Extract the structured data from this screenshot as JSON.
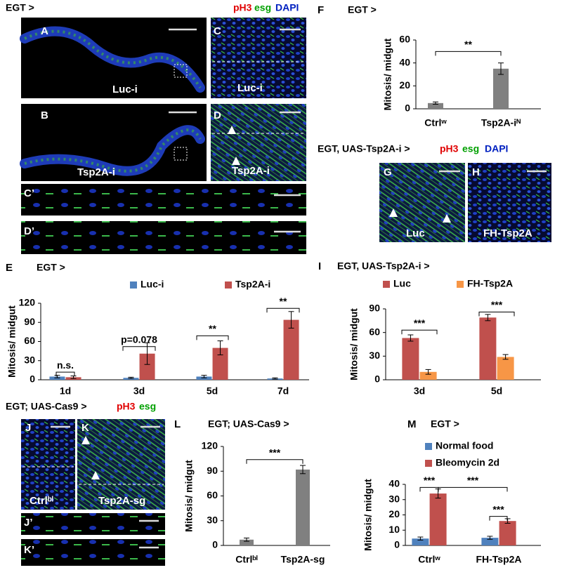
{
  "figure": {
    "top_header": "EGT >",
    "stain_1": [
      "pH3",
      "esg",
      "DAPI"
    ],
    "gh_header": "EGT, UAS-Tsp2A-i >",
    "stain_2": [
      "pH3",
      "esg",
      "DAPI"
    ],
    "jk_header": "EGT; UAS-Cas9 >",
    "stain_3": [
      "pH3",
      "esg"
    ],
    "images": [
      {
        "letter": "A",
        "label": "Luc-i"
      },
      {
        "letter": "B",
        "label": "Tsp2A-i"
      },
      {
        "letter": "C",
        "label": "Luc-i"
      },
      {
        "letter": "D",
        "label": "Tsp2A-i"
      },
      {
        "letter": "C’"
      },
      {
        "letter": "D’"
      },
      {
        "letter": "G",
        "label": "Luc"
      },
      {
        "letter": "H",
        "label": "FH-Tsp2A"
      },
      {
        "letter": "J",
        "label": "Ctrlᵇˡ"
      },
      {
        "letter": "K",
        "label": "Tsp2A-sg"
      },
      {
        "letter": "J’"
      },
      {
        "letter": "K’"
      }
    ]
  },
  "chart_data": [
    {
      "type": "bar",
      "letter": "F",
      "title": "EGT >",
      "ylabel": "Mitosis/ midgut",
      "categories": [
        "Ctrlʷ",
        "Tsp2A-iᴺ"
      ],
      "series": [
        {
          "color": "#808080",
          "values": [
            5,
            35
          ],
          "errors": [
            1,
            5
          ]
        }
      ],
      "ylim": [
        0,
        60
      ],
      "yticks": [
        0,
        20,
        40,
        60
      ],
      "annotations": [
        "**"
      ]
    },
    {
      "type": "bar",
      "letter": "E",
      "title": "EGT >",
      "ylabel": "Mitosis/ midgut",
      "categories": [
        "1d",
        "3d",
        "5d",
        "7d"
      ],
      "series": [
        {
          "name": "Luc-i",
          "color": "#4f81bd",
          "values": [
            5,
            3,
            5,
            2
          ],
          "errors": [
            2,
            1,
            2,
            1
          ]
        },
        {
          "name": "Tsp2A-i",
          "color": "#c0504d",
          "values": [
            4,
            41,
            50,
            94
          ],
          "errors": [
            2,
            17,
            11,
            13
          ]
        }
      ],
      "ylim": [
        0,
        120
      ],
      "yticks": [
        0,
        30,
        60,
        90,
        120
      ],
      "annotations": [
        "n.s.",
        "p=0.078",
        "**",
        "**"
      ]
    },
    {
      "type": "bar",
      "letter": "I",
      "title": "EGT, UAS-Tsp2A-i >",
      "ylabel": "Mitosis/ midgut",
      "categories": [
        "3d",
        "5d"
      ],
      "series": [
        {
          "name": "Luc",
          "color": "#c0504d",
          "values": [
            53,
            79
          ],
          "errors": [
            4,
            4
          ]
        },
        {
          "name": "FH-Tsp2A",
          "color": "#f79646",
          "values": [
            10,
            29
          ],
          "errors": [
            3,
            3
          ]
        }
      ],
      "ylim": [
        0,
        90
      ],
      "yticks": [
        0,
        30,
        60,
        90
      ],
      "annotations": [
        "***",
        "***"
      ]
    },
    {
      "type": "bar",
      "letter": "L",
      "title": "EGT; UAS-Cas9 >",
      "ylabel": "Mitosis/ midgut",
      "categories": [
        "Ctrlᵇˡ",
        "Tsp2A-sg"
      ],
      "series": [
        {
          "color": "#808080",
          "values": [
            7,
            92
          ],
          "errors": [
            2,
            5
          ]
        }
      ],
      "ylim": [
        0,
        120
      ],
      "yticks": [
        0,
        30,
        60,
        90,
        120
      ],
      "annotations": [
        "***"
      ]
    },
    {
      "type": "bar",
      "letter": "M",
      "title": "EGT >",
      "ylabel": "Mitosis/ midgut",
      "categories": [
        "Ctrlʷ",
        "FH-Tsp2A"
      ],
      "series": [
        {
          "name": "Normal food",
          "color": "#4f81bd",
          "values": [
            4.5,
            5
          ],
          "errors": [
            1,
            1
          ]
        },
        {
          "name": "Bleomycin 2d",
          "color": "#c0504d",
          "values": [
            34,
            16
          ],
          "errors": [
            3,
            1.5
          ]
        }
      ],
      "ylim": [
        0,
        40
      ],
      "yticks": [
        0,
        10,
        20,
        30,
        40
      ],
      "annotations": [
        "***",
        "***",
        "***"
      ]
    }
  ]
}
